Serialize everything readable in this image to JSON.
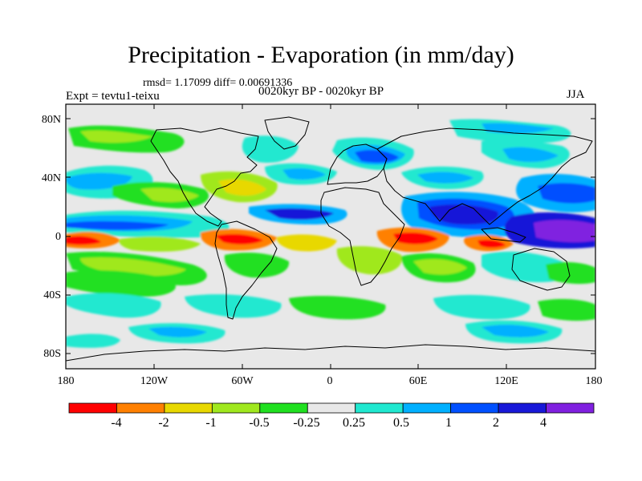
{
  "title": "Precipitation - Evaporation (in mm/day)",
  "stats": "rmsd= 1.17099 diff= 0.00691336",
  "experiment": "Expt = tevtu1-teixu",
  "period": "0020kyr BP - 0020kyr BP",
  "season": "JJA",
  "y_axis": {
    "ticks": [
      "80N",
      "40N",
      "0",
      "40S",
      "80S"
    ],
    "values": [
      80,
      40,
      0,
      -40,
      -80
    ]
  },
  "x_axis": {
    "ticks": [
      "180",
      "120W",
      "60W",
      "0",
      "60E",
      "120E",
      "180"
    ],
    "values": [
      -180,
      -120,
      -60,
      0,
      60,
      120,
      180
    ]
  },
  "colorbar": {
    "boundaries": [
      "-4",
      "-2",
      "-1",
      "-0.5",
      "-0.25",
      "0.25",
      "0.5",
      "1",
      "2",
      "4"
    ],
    "colors": [
      "#ff0000",
      "#ff8000",
      "#e8d800",
      "#a0e81e",
      "#20e020",
      "#e8e8e8",
      "#20e8d0",
      "#00b0ff",
      "#0050ff",
      "#1818d8",
      "#8020e0"
    ]
  },
  "palette": {
    "ocean_neutral": "#e8e8e8",
    "red": "#ff0000",
    "orange": "#ff8000",
    "yellow": "#e8d800",
    "lightgreen": "#a0e81e",
    "green": "#20e020",
    "cyan": "#20e8d0",
    "lightblue": "#00b0ff",
    "blue": "#0050ff",
    "darkblue": "#1818d8",
    "purple": "#8020e0"
  }
}
